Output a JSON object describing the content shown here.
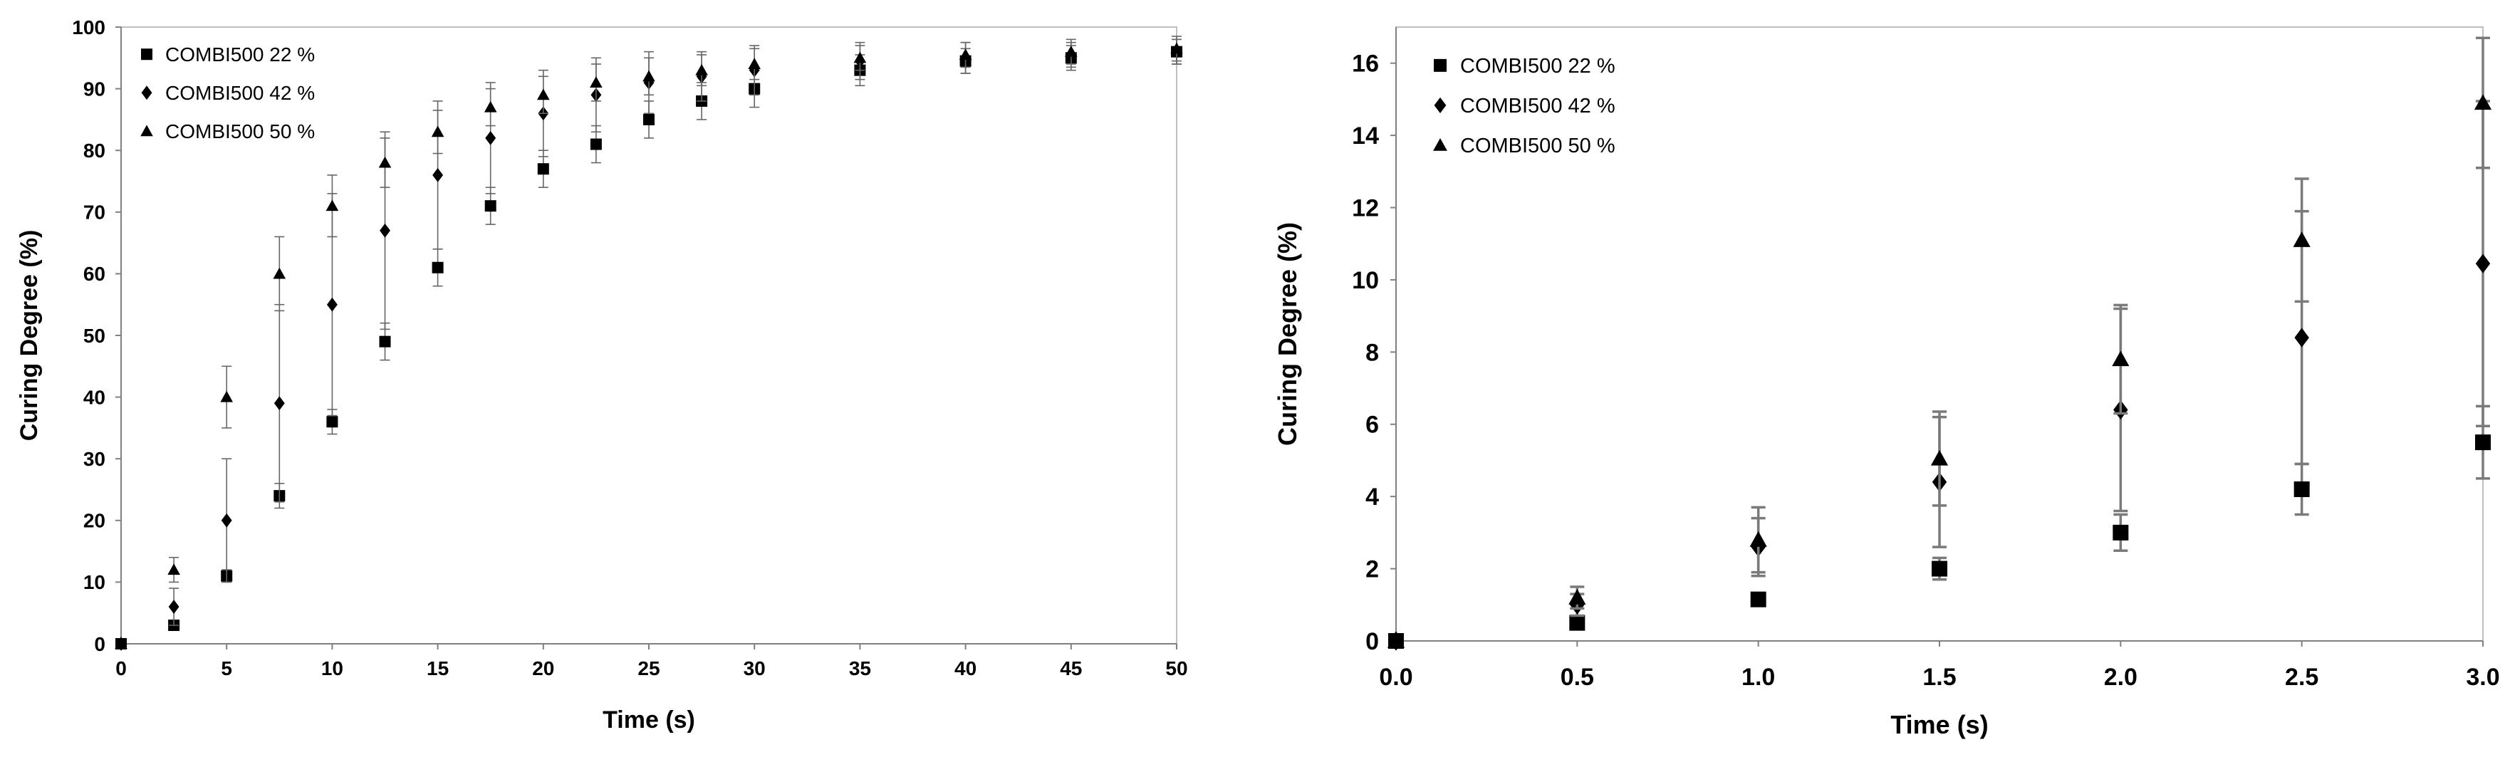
{
  "chart_data": [
    {
      "type": "scatter",
      "title": "",
      "xlabel": "Time (s)",
      "ylabel": "Curing Degree (%)",
      "xlim": [
        0,
        50
      ],
      "ylim": [
        0,
        100
      ],
      "xticks": [
        0,
        5,
        10,
        15,
        20,
        25,
        30,
        35,
        40,
        45,
        50
      ],
      "yticks": [
        0,
        10,
        20,
        30,
        40,
        50,
        60,
        70,
        80,
        90,
        100
      ],
      "grid": false,
      "legend_position": "top-left",
      "error_bars": true,
      "series": [
        {
          "name": "COMBI500 22 %",
          "marker": "square",
          "x": [
            0,
            2.5,
            5,
            7.5,
            10,
            12.5,
            15,
            17.5,
            20,
            22.5,
            25,
            27.5,
            30,
            35,
            40,
            45,
            50
          ],
          "y": [
            0,
            3,
            11,
            24,
            36,
            49,
            61,
            71,
            77,
            81,
            85,
            88,
            90,
            93,
            94.5,
            95,
            96
          ],
          "err": [
            0,
            0.5,
            1,
            2,
            2,
            3,
            3,
            3,
            3,
            3,
            3,
            3,
            3,
            2.5,
            2,
            2,
            2
          ]
        },
        {
          "name": "COMBI500 42 %",
          "marker": "diamond",
          "x": [
            0,
            2.5,
            5,
            7.5,
            10,
            12.5,
            15,
            17.5,
            20,
            22.5,
            25,
            27.5,
            30,
            35,
            40,
            45,
            50
          ],
          "y": [
            0,
            6,
            20,
            39,
            55,
            67,
            76,
            82,
            86,
            89,
            91,
            92,
            93,
            94.5,
            95,
            95.5,
            96
          ],
          "err": [
            0,
            3,
            10,
            16,
            18,
            16,
            12,
            9,
            7,
            6,
            5,
            4,
            4,
            3,
            2.5,
            2,
            2
          ]
        },
        {
          "name": "COMBI500 50 %",
          "marker": "triangle",
          "x": [
            0,
            2.5,
            5,
            7.5,
            10,
            12.5,
            15,
            17.5,
            20,
            22.5,
            25,
            27.5,
            30,
            35,
            40,
            45,
            50
          ],
          "y": [
            0,
            12,
            40,
            60,
            71,
            78,
            83,
            87,
            89,
            91,
            92,
            93,
            94,
            95,
            95.5,
            96,
            96.5
          ],
          "err": [
            0,
            2,
            5,
            6,
            5,
            4,
            3.5,
            3,
            3,
            3,
            3,
            2.5,
            2.5,
            2,
            2,
            2,
            2
          ]
        }
      ]
    },
    {
      "type": "scatter",
      "title": "",
      "xlabel": "Time (s)",
      "ylabel": "Curing Degree (%)",
      "xlim": [
        0,
        3
      ],
      "ylim": [
        0,
        17
      ],
      "xticks": [
        0.0,
        0.5,
        1.0,
        1.5,
        2.0,
        2.5,
        3.0
      ],
      "xtick_labels": [
        "0.0",
        "0.5",
        "1.0",
        "1.5",
        "2.0",
        "2.5",
        "3.0"
      ],
      "yticks": [
        0,
        2,
        4,
        6,
        8,
        10,
        12,
        14,
        16
      ],
      "grid": false,
      "legend_position": "top-left",
      "error_bars": true,
      "series": [
        {
          "name": "COMBI500 22 %",
          "marker": "square",
          "x": [
            0,
            0.5,
            1.0,
            1.5,
            2.0,
            2.5,
            3.0
          ],
          "y": [
            0,
            0.5,
            1.15,
            2.0,
            3.0,
            4.2,
            5.5
          ],
          "err": [
            0,
            0.1,
            0.15,
            0.3,
            0.5,
            0.7,
            1.0
          ]
        },
        {
          "name": "COMBI500 42 %",
          "marker": "diamond",
          "x": [
            0,
            0.5,
            1.0,
            1.5,
            2.0,
            2.5,
            3.0
          ],
          "y": [
            0,
            1.0,
            2.6,
            4.4,
            6.4,
            8.4,
            10.45
          ],
          "err": [
            0,
            0.3,
            0.8,
            1.8,
            2.8,
            3.5,
            4.5
          ]
        },
        {
          "name": "COMBI500 50 %",
          "marker": "triangle",
          "x": [
            0,
            0.5,
            1.0,
            1.5,
            2.0,
            2.5,
            3.0
          ],
          "y": [
            0,
            1.2,
            2.8,
            5.05,
            7.8,
            11.1,
            14.9
          ],
          "err": [
            0,
            0.3,
            0.9,
            1.3,
            1.5,
            1.7,
            1.8
          ]
        }
      ]
    }
  ]
}
